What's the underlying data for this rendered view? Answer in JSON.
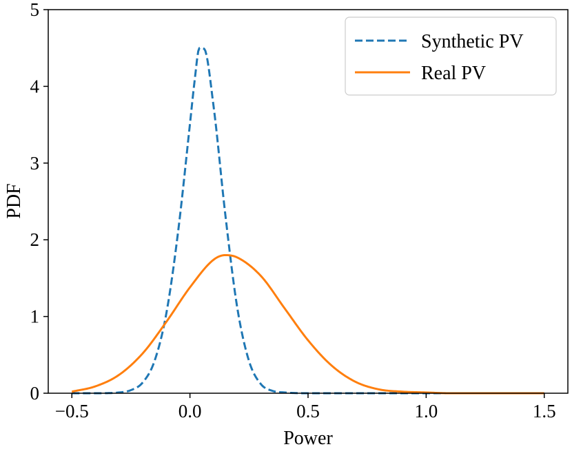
{
  "chart_data": {
    "type": "line",
    "title": "",
    "xlabel": "Power",
    "ylabel": "PDF",
    "xlim": [
      -0.6,
      1.6
    ],
    "ylim": [
      0,
      5
    ],
    "grid": false,
    "legend_position": "top-right",
    "xticks": [
      -0.5,
      0.0,
      0.5,
      1.0,
      1.5
    ],
    "xtick_labels": [
      "−0.5",
      "0.0",
      "0.5",
      "1.0",
      "1.5"
    ],
    "yticks": [
      0,
      1,
      2,
      3,
      4,
      5
    ],
    "ytick_labels": [
      "0",
      "1",
      "2",
      "3",
      "4",
      "5"
    ],
    "series": [
      {
        "name": "Synthetic PV",
        "color": "#1f77b4",
        "style": "dashed",
        "x": [
          -0.5,
          -0.4,
          -0.3,
          -0.25,
          -0.2,
          -0.15,
          -0.1,
          -0.05,
          0.0,
          0.02,
          0.04,
          0.06,
          0.1,
          0.15,
          0.2,
          0.25,
          0.3,
          0.35,
          0.4,
          0.5,
          0.75,
          1.0,
          1.25,
          1.5
        ],
        "values": [
          0.0,
          0.0,
          0.01,
          0.04,
          0.14,
          0.42,
          1.04,
          2.11,
          3.51,
          4.08,
          4.5,
          4.49,
          3.74,
          2.32,
          1.12,
          0.42,
          0.12,
          0.03,
          0.01,
          0.0,
          0.0,
          0.0,
          0.0,
          0.0
        ]
      },
      {
        "name": "Real PV",
        "color": "#ff7f0e",
        "style": "solid",
        "x": [
          -0.5,
          -0.4,
          -0.3,
          -0.2,
          -0.1,
          0.0,
          0.1,
          0.15,
          0.2,
          0.3,
          0.4,
          0.5,
          0.6,
          0.7,
          0.8,
          0.9,
          1.0,
          1.1,
          1.25,
          1.5
        ],
        "values": [
          0.02,
          0.09,
          0.24,
          0.52,
          0.93,
          1.38,
          1.74,
          1.8,
          1.77,
          1.53,
          1.11,
          0.69,
          0.36,
          0.15,
          0.05,
          0.02,
          0.01,
          0.0,
          0.0,
          0.0
        ]
      }
    ]
  }
}
